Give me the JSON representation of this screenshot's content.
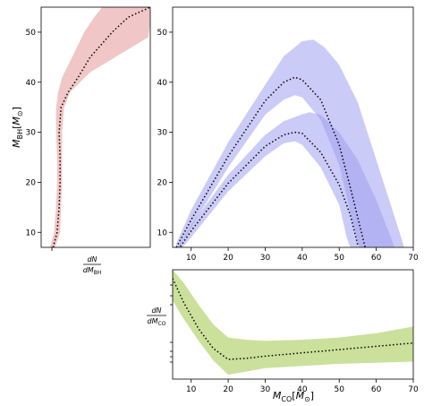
{
  "chart_data": [
    {
      "panel": "left",
      "type": "area",
      "ylabel": "M_BH[M⊙]",
      "xlabel": "dN/dM_BH",
      "ylim": [
        7,
        55
      ],
      "yticks": [
        10,
        20,
        30,
        40,
        50
      ],
      "band_color": "#e8a0a0",
      "median": [
        {
          "y": 7,
          "x": 0.03
        },
        {
          "y": 10,
          "x": 0.07
        },
        {
          "y": 15,
          "x": 0.09
        },
        {
          "y": 20,
          "x": 0.1
        },
        {
          "y": 25,
          "x": 0.1
        },
        {
          "y": 30,
          "x": 0.09
        },
        {
          "y": 35,
          "x": 0.11
        },
        {
          "y": 38,
          "x": 0.18
        },
        {
          "y": 41,
          "x": 0.28
        },
        {
          "y": 45,
          "x": 0.4
        },
        {
          "y": 50,
          "x": 0.62
        },
        {
          "y": 53,
          "x": 0.78
        },
        {
          "y": 55,
          "x": 1.0
        }
      ],
      "lower": [
        {
          "y": 7,
          "x": 0.0
        },
        {
          "y": 10,
          "x": 0.04
        },
        {
          "y": 15,
          "x": 0.06
        },
        {
          "y": 20,
          "x": 0.07
        },
        {
          "y": 25,
          "x": 0.07
        },
        {
          "y": 30,
          "x": 0.06
        },
        {
          "y": 35,
          "x": 0.06
        },
        {
          "y": 38,
          "x": 0.08
        },
        {
          "y": 41,
          "x": 0.12
        },
        {
          "y": 45,
          "x": 0.22
        },
        {
          "y": 50,
          "x": 0.34
        },
        {
          "y": 53,
          "x": 0.44
        },
        {
          "y": 55,
          "x": 0.52
        }
      ],
      "upper": [
        {
          "y": 7,
          "x": 0.05
        },
        {
          "y": 10,
          "x": 0.1
        },
        {
          "y": 15,
          "x": 0.11
        },
        {
          "y": 20,
          "x": 0.12
        },
        {
          "y": 25,
          "x": 0.12
        },
        {
          "y": 30,
          "x": 0.12
        },
        {
          "y": 35,
          "x": 0.14
        },
        {
          "y": 38,
          "x": 0.2
        },
        {
          "y": 42,
          "x": 0.4
        },
        {
          "y": 45,
          "x": 0.65
        },
        {
          "y": 49,
          "x": 0.98
        },
        {
          "y": 52,
          "x": 1.0
        },
        {
          "y": 55,
          "x": 1.0
        }
      ]
    },
    {
      "panel": "main",
      "type": "area",
      "xlim": [
        5,
        70
      ],
      "ylim": [
        7,
        55
      ],
      "xticks": [
        10,
        20,
        30,
        40,
        50,
        60,
        70
      ],
      "yticks": [
        10,
        20,
        30,
        40,
        50
      ],
      "band_color": "#a0a0f0",
      "series": [
        {
          "median": [
            [
              6,
              7
            ],
            [
              10,
              12.5
            ],
            [
              20,
              25.2
            ],
            [
              30,
              36.3
            ],
            [
              35,
              40
            ],
            [
              38,
              41
            ],
            [
              40,
              40.5
            ],
            [
              45,
              36.5
            ],
            [
              50,
              27.5
            ],
            [
              53,
              19
            ],
            [
              55,
              13
            ],
            [
              57,
              7
            ]
          ],
          "lower": [
            [
              6,
              6.2
            ],
            [
              10,
              11
            ],
            [
              20,
              23
            ],
            [
              30,
              33.5
            ],
            [
              35,
              36.5
            ],
            [
              38,
              37.4
            ],
            [
              40,
              37
            ],
            [
              45,
              32.5
            ],
            [
              50,
              23.5
            ],
            [
              53,
              14
            ],
            [
              55,
              8
            ],
            [
              56,
              6
            ]
          ],
          "upper": [
            [
              6,
              7.8
            ],
            [
              10,
              14.5
            ],
            [
              20,
              28
            ],
            [
              30,
              39.5
            ],
            [
              35,
              45.2
            ],
            [
              40,
              48.2
            ],
            [
              43,
              48.5
            ],
            [
              46,
              47
            ],
            [
              50,
              43.5
            ],
            [
              55,
              36
            ],
            [
              60,
              24.5
            ],
            [
              65,
              13
            ],
            [
              68,
              6
            ]
          ]
        },
        {
          "median": [
            [
              6,
              6
            ],
            [
              10,
              10.3
            ],
            [
              20,
              19.8
            ],
            [
              30,
              27.2
            ],
            [
              35,
              29.5
            ],
            [
              38,
              30
            ],
            [
              40,
              29.8
            ],
            [
              45,
              26
            ],
            [
              50,
              19.5
            ],
            [
              53,
              13.5
            ],
            [
              55,
              7.5
            ]
          ],
          "lower": [
            [
              6,
              5.5
            ],
            [
              10,
              9
            ],
            [
              20,
              18.2
            ],
            [
              30,
              25.2
            ],
            [
              35,
              27.8
            ],
            [
              38,
              28.2
            ],
            [
              40,
              27.5
            ],
            [
              45,
              23
            ],
            [
              50,
              15.5
            ],
            [
              52,
              9
            ],
            [
              54,
              5
            ]
          ],
          "upper": [
            [
              6,
              6.5
            ],
            [
              10,
              11.5
            ],
            [
              20,
              21.5
            ],
            [
              30,
              29.5
            ],
            [
              35,
              32.2
            ],
            [
              40,
              33.6
            ],
            [
              42,
              34
            ],
            [
              45,
              33.5
            ],
            [
              50,
              30
            ],
            [
              55,
              24.5
            ],
            [
              60,
              16.5
            ],
            [
              65,
              7
            ],
            [
              67,
              5
            ]
          ]
        }
      ]
    },
    {
      "panel": "bottom",
      "type": "area",
      "xlabel": "M_CO[M⊙]",
      "ylabel": "dN/dM_CO",
      "xlim": [
        5,
        70
      ],
      "xticks": [
        10,
        20,
        30,
        40,
        50,
        60,
        70
      ],
      "band_color": "#c2dc8a",
      "median": [
        [
          5,
          0.92
        ],
        [
          8,
          0.7
        ],
        [
          12,
          0.46
        ],
        [
          16,
          0.28
        ],
        [
          20,
          0.18
        ],
        [
          25,
          0.19
        ],
        [
          30,
          0.21
        ],
        [
          40,
          0.24
        ],
        [
          50,
          0.27
        ],
        [
          60,
          0.3
        ],
        [
          70,
          0.33
        ]
      ],
      "lower": [
        [
          5,
          0.72
        ],
        [
          8,
          0.55
        ],
        [
          12,
          0.35
        ],
        [
          16,
          0.17
        ],
        [
          20,
          0.04
        ],
        [
          25,
          0.07
        ],
        [
          30,
          0.1
        ],
        [
          40,
          0.12
        ],
        [
          50,
          0.14
        ],
        [
          60,
          0.15
        ],
        [
          70,
          0.16
        ]
      ],
      "upper": [
        [
          5,
          1.0
        ],
        [
          8,
          0.88
        ],
        [
          12,
          0.68
        ],
        [
          16,
          0.5
        ],
        [
          20,
          0.38
        ],
        [
          25,
          0.36
        ],
        [
          30,
          0.35
        ],
        [
          40,
          0.36
        ],
        [
          50,
          0.38
        ],
        [
          60,
          0.42
        ],
        [
          70,
          0.48
        ]
      ]
    }
  ]
}
